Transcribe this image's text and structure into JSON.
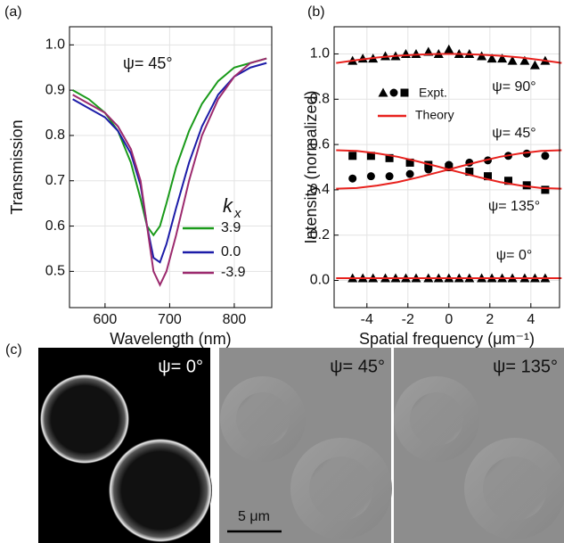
{
  "chart_data": [
    {
      "type": "line",
      "panel": "(a)",
      "xlabel": "Wavelength (nm)",
      "ylabel": "Transmission",
      "annotation": "ψ= 45°",
      "legend_title": "k",
      "legend_title_sub": "x",
      "x": [
        550,
        575,
        600,
        620,
        640,
        655,
        665,
        675,
        685,
        695,
        710,
        730,
        750,
        775,
        800,
        825,
        850
      ],
      "series": [
        {
          "name": "3.9",
          "color": "#1a9a1a",
          "values": [
            0.9,
            0.88,
            0.85,
            0.81,
            0.74,
            0.66,
            0.6,
            0.58,
            0.6,
            0.65,
            0.73,
            0.81,
            0.87,
            0.92,
            0.95,
            0.96,
            0.97
          ]
        },
        {
          "name": "0.0",
          "color": "#1c1ca8",
          "values": [
            0.88,
            0.86,
            0.84,
            0.81,
            0.76,
            0.69,
            0.6,
            0.53,
            0.52,
            0.56,
            0.64,
            0.74,
            0.82,
            0.89,
            0.93,
            0.95,
            0.96
          ]
        },
        {
          "name": "-3.9",
          "color": "#9c2a6e",
          "values": [
            0.89,
            0.87,
            0.85,
            0.82,
            0.77,
            0.7,
            0.6,
            0.5,
            0.47,
            0.5,
            0.58,
            0.7,
            0.8,
            0.88,
            0.93,
            0.96,
            0.97
          ]
        }
      ],
      "xlim": [
        545,
        858
      ],
      "ylim": [
        0.42,
        1.04
      ],
      "xticks": [
        600,
        700,
        800
      ],
      "yticks": [
        0.5,
        0.6,
        0.7,
        0.8,
        0.9,
        {
          "value": 1,
          "label": "1.0"
        }
      ],
      "grid": true
    },
    {
      "type": "scatter",
      "panel": "(b)",
      "xlabel": "Spatial frequency (μm⁻¹)",
      "ylabel": "Intensity (normalized)",
      "legend": [
        "Expt.",
        "Theory"
      ],
      "theory_color": "#e8211d",
      "series": [
        {
          "kind": "points",
          "marker": "triangle",
          "label": "ψ= 90°",
          "x": [
            -4.7,
            -4.2,
            -3.7,
            -3.1,
            -2.6,
            -2.1,
            -1.6,
            -1.0,
            -0.5,
            0,
            0.5,
            1.0,
            1.6,
            2.1,
            2.6,
            3.1,
            3.7,
            4.2,
            4.7
          ],
          "values": [
            0.97,
            0.98,
            0.98,
            0.99,
            0.99,
            1.0,
            1.0,
            1.01,
            1.0,
            1.02,
            1.0,
            1.0,
            0.99,
            0.98,
            0.98,
            0.97,
            0.97,
            0.95,
            0.97
          ]
        },
        {
          "kind": "points",
          "marker": "circle",
          "label": "ψ= 45°",
          "x": [
            -4.7,
            -3.8,
            -2.9,
            -1.9,
            -1.0,
            0,
            1.0,
            1.9,
            2.9,
            3.8,
            4.7
          ],
          "values": [
            0.45,
            0.46,
            0.46,
            0.47,
            0.49,
            0.51,
            0.52,
            0.53,
            0.55,
            0.56,
            0.55
          ]
        },
        {
          "kind": "points",
          "marker": "square",
          "label": "ψ= 135°",
          "x": [
            -4.7,
            -3.8,
            -2.9,
            -1.9,
            -1.0,
            0,
            1.0,
            1.9,
            2.9,
            3.8,
            4.7
          ],
          "values": [
            0.55,
            0.55,
            0.54,
            0.52,
            0.51,
            0.5,
            0.48,
            0.46,
            0.44,
            0.42,
            0.4
          ]
        },
        {
          "kind": "points",
          "marker": "triangle",
          "label": "ψ= 0°",
          "x": [
            -4.7,
            -4.2,
            -3.7,
            -3.1,
            -2.6,
            -2.1,
            -1.6,
            -1.0,
            -0.5,
            0,
            0.5,
            1.0,
            1.6,
            2.1,
            2.6,
            3.1,
            3.7,
            4.2,
            4.7
          ],
          "values": [
            0.01,
            0.01,
            0.01,
            0.01,
            0.01,
            0.01,
            0.01,
            0.01,
            0.01,
            0.01,
            0.01,
            0.01,
            0.01,
            0.01,
            0.01,
            0.01,
            0.01,
            0.01,
            0.01
          ]
        },
        {
          "kind": "theory",
          "x": [
            -5.5,
            -4.5,
            -3.5,
            -2.5,
            -1.5,
            -0.5,
            0.5,
            1.5,
            2.5,
            3.5,
            4.5,
            5.5
          ],
          "values": [
            0.96,
            0.973,
            0.984,
            0.992,
            0.997,
            1.0,
            1.0,
            0.997,
            0.992,
            0.984,
            0.973,
            0.96
          ]
        },
        {
          "kind": "theory",
          "x": [
            -5.5,
            -4.5,
            -3.5,
            -2.5,
            -1.5,
            -0.5,
            0.5,
            1.5,
            2.5,
            3.5,
            4.5,
            5.5
          ],
          "values": [
            0.405,
            0.408,
            0.419,
            0.434,
            0.455,
            0.478,
            0.502,
            0.525,
            0.546,
            0.561,
            0.572,
            0.575
          ]
        },
        {
          "kind": "theory",
          "x": [
            -5.5,
            -4.5,
            -3.5,
            -2.5,
            -1.5,
            -0.5,
            0.5,
            1.5,
            2.5,
            3.5,
            4.5,
            5.5
          ],
          "values": [
            0.575,
            0.572,
            0.561,
            0.546,
            0.525,
            0.502,
            0.478,
            0.455,
            0.434,
            0.419,
            0.408,
            0.405
          ]
        },
        {
          "kind": "theory",
          "x": [
            -5.5,
            -4.5,
            -3.5,
            -2.5,
            -1.5,
            -0.5,
            0.5,
            1.5,
            2.5,
            3.5,
            4.5,
            5.5
          ],
          "values": [
            0.01,
            0.01,
            0.01,
            0.01,
            0.01,
            0.01,
            0.01,
            0.01,
            0.01,
            0.01,
            0.01,
            0.01
          ]
        }
      ],
      "xlim": [
        -5.6,
        5.4
      ],
      "ylim": [
        -0.12,
        1.12
      ],
      "xticks": [
        -4,
        -2,
        0,
        2,
        4
      ],
      "yticks": [
        {
          "value": 0,
          "label": "0.0"
        },
        0.2,
        0.4,
        0.6,
        0.8,
        {
          "value": 1,
          "label": "1.0"
        }
      ],
      "grid": true
    }
  ],
  "panel_c": {
    "panel": "(c)",
    "images": [
      {
        "label": "ψ= 0°"
      },
      {
        "label": "ψ= 45°"
      },
      {
        "label": "ψ= 135°"
      }
    ],
    "scale_bar": "5 μm"
  }
}
